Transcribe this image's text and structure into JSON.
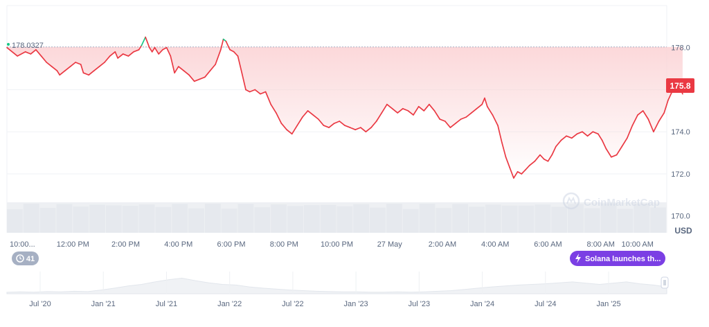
{
  "chart_data": {
    "type": "line",
    "unit_label": "USD",
    "current_price_label": "175.8",
    "reference_price_label": "178.0327",
    "reference_price": 178.0327,
    "ylim": [
      169.2,
      180.0
    ],
    "y_ticks": [
      "178.0",
      "176.0",
      "174.0",
      "172.0",
      "170.0"
    ],
    "y_tick_values": [
      178.0,
      176.0,
      174.0,
      172.0,
      170.0
    ],
    "x_ticks": [
      "10:00...",
      "12:00 PM",
      "2:00 PM",
      "4:00 PM",
      "6:00 PM",
      "8:00 PM",
      "10:00 PM",
      "27 May",
      "2:00 AM",
      "4:00 AM",
      "6:00 AM",
      "8:00 AM",
      "10:00 AM"
    ],
    "x_tick_values": [
      0,
      2,
      4,
      6,
      8,
      10,
      12,
      14,
      16,
      18,
      20,
      22,
      24
    ],
    "x_range": [
      -0.5,
      24.5
    ],
    "series": [
      {
        "values": [
          [
            -0.5,
            178.0
          ],
          [
            -0.1,
            177.6
          ],
          [
            0.2,
            177.8
          ],
          [
            0.4,
            177.7
          ],
          [
            0.6,
            177.9
          ],
          [
            0.8,
            177.6
          ],
          [
            1.0,
            177.3
          ],
          [
            1.2,
            177.1
          ],
          [
            1.4,
            176.9
          ],
          [
            1.5,
            176.7
          ],
          [
            1.7,
            176.9
          ],
          [
            1.9,
            177.1
          ],
          [
            2.1,
            177.3
          ],
          [
            2.3,
            177.2
          ],
          [
            2.4,
            176.8
          ],
          [
            2.6,
            176.7
          ],
          [
            2.8,
            176.9
          ],
          [
            3.0,
            177.1
          ],
          [
            3.2,
            177.3
          ],
          [
            3.4,
            177.6
          ],
          [
            3.6,
            177.8
          ],
          [
            3.7,
            177.5
          ],
          [
            3.9,
            177.7
          ],
          [
            4.1,
            177.6
          ],
          [
            4.3,
            177.8
          ],
          [
            4.5,
            177.9
          ],
          [
            4.6,
            178.1
          ],
          [
            4.75,
            178.5
          ],
          [
            4.9,
            178.0
          ],
          [
            5.0,
            177.8
          ],
          [
            5.1,
            178.0
          ],
          [
            5.25,
            177.7
          ],
          [
            5.4,
            177.9
          ],
          [
            5.55,
            178.0
          ],
          [
            5.7,
            177.6
          ],
          [
            5.85,
            176.8
          ],
          [
            6.0,
            177.1
          ],
          [
            6.2,
            176.9
          ],
          [
            6.4,
            176.7
          ],
          [
            6.6,
            176.4
          ],
          [
            6.8,
            176.5
          ],
          [
            7.0,
            176.6
          ],
          [
            7.2,
            176.9
          ],
          [
            7.4,
            177.2
          ],
          [
            7.6,
            177.9
          ],
          [
            7.7,
            178.4
          ],
          [
            7.8,
            178.3
          ],
          [
            7.95,
            177.9
          ],
          [
            8.1,
            177.8
          ],
          [
            8.25,
            177.6
          ],
          [
            8.4,
            176.8
          ],
          [
            8.55,
            176.0
          ],
          [
            8.7,
            175.9
          ],
          [
            8.9,
            176.0
          ],
          [
            9.1,
            175.8
          ],
          [
            9.3,
            175.9
          ],
          [
            9.5,
            175.3
          ],
          [
            9.7,
            174.9
          ],
          [
            9.9,
            174.4
          ],
          [
            10.1,
            174.1
          ],
          [
            10.3,
            173.9
          ],
          [
            10.5,
            174.3
          ],
          [
            10.7,
            174.7
          ],
          [
            10.9,
            175.0
          ],
          [
            11.1,
            174.8
          ],
          [
            11.3,
            174.6
          ],
          [
            11.5,
            174.3
          ],
          [
            11.7,
            174.2
          ],
          [
            11.9,
            174.4
          ],
          [
            12.1,
            174.5
          ],
          [
            12.3,
            174.3
          ],
          [
            12.5,
            174.2
          ],
          [
            12.7,
            174.1
          ],
          [
            12.9,
            174.2
          ],
          [
            13.1,
            174.0
          ],
          [
            13.3,
            174.2
          ],
          [
            13.5,
            174.5
          ],
          [
            13.7,
            174.9
          ],
          [
            13.9,
            175.3
          ],
          [
            14.1,
            175.1
          ],
          [
            14.3,
            174.9
          ],
          [
            14.5,
            175.1
          ],
          [
            14.7,
            175.0
          ],
          [
            14.9,
            174.8
          ],
          [
            15.1,
            175.2
          ],
          [
            15.3,
            175.0
          ],
          [
            15.5,
            175.3
          ],
          [
            15.7,
            175.0
          ],
          [
            15.9,
            174.6
          ],
          [
            16.1,
            174.5
          ],
          [
            16.3,
            174.2
          ],
          [
            16.5,
            174.4
          ],
          [
            16.7,
            174.6
          ],
          [
            16.9,
            174.7
          ],
          [
            17.1,
            174.9
          ],
          [
            17.3,
            175.1
          ],
          [
            17.5,
            175.3
          ],
          [
            17.6,
            175.6
          ],
          [
            17.7,
            175.2
          ],
          [
            17.9,
            174.8
          ],
          [
            18.1,
            174.3
          ],
          [
            18.25,
            173.5
          ],
          [
            18.4,
            172.8
          ],
          [
            18.55,
            172.3
          ],
          [
            18.7,
            171.8
          ],
          [
            18.85,
            172.1
          ],
          [
            19.0,
            172.0
          ],
          [
            19.15,
            172.2
          ],
          [
            19.3,
            172.4
          ],
          [
            19.5,
            172.6
          ],
          [
            19.7,
            172.9
          ],
          [
            19.85,
            172.7
          ],
          [
            20.0,
            172.6
          ],
          [
            20.15,
            172.9
          ],
          [
            20.3,
            173.3
          ],
          [
            20.5,
            173.6
          ],
          [
            20.7,
            173.8
          ],
          [
            20.9,
            173.7
          ],
          [
            21.1,
            173.9
          ],
          [
            21.3,
            174.0
          ],
          [
            21.5,
            173.8
          ],
          [
            21.7,
            174.0
          ],
          [
            21.9,
            173.9
          ],
          [
            22.05,
            173.6
          ],
          [
            22.2,
            173.2
          ],
          [
            22.4,
            172.8
          ],
          [
            22.6,
            172.9
          ],
          [
            22.8,
            173.3
          ],
          [
            23.0,
            173.7
          ],
          [
            23.2,
            174.3
          ],
          [
            23.4,
            174.8
          ],
          [
            23.6,
            175.0
          ],
          [
            23.8,
            174.6
          ],
          [
            24.0,
            174.0
          ],
          [
            24.2,
            174.5
          ],
          [
            24.4,
            174.9
          ],
          [
            24.55,
            175.5
          ],
          [
            24.7,
            175.9
          ],
          [
            24.85,
            176.2
          ],
          [
            25.0,
            176.1
          ],
          [
            25.1,
            175.8
          ]
        ]
      }
    ],
    "reference_line": true,
    "colors": {
      "line_down": "#ea3943",
      "line_up": "#16c784",
      "fill_top": "#fbd4d6",
      "ref_line": "#a6b0c3",
      "badge": "#ea3943",
      "text": "#58667e",
      "grid": "#eff2f5",
      "event_chip": "#7b3fe4"
    },
    "watermark": "CoinMarketCap",
    "events_count": "41",
    "event_label": "Solana launches th...",
    "navigator_labels": [
      "Jul '20",
      "Jan '21",
      "Jul '21",
      "Jan '22",
      "Jul '22",
      "Jan '23",
      "Jul '23",
      "Jan '24",
      "Jul '24",
      "Jan '25"
    ],
    "navigator_volume": [
      0.05,
      0.06,
      0.05,
      0.07,
      0.06,
      0.08,
      0.07,
      0.12,
      0.18,
      0.25,
      0.3,
      0.38,
      0.45,
      0.5,
      0.42,
      0.35,
      0.3,
      0.28,
      0.22,
      0.18,
      0.15,
      0.12,
      0.1,
      0.08,
      0.07,
      0.06,
      0.06,
      0.05,
      0.05,
      0.06,
      0.05,
      0.06,
      0.08,
      0.1,
      0.14,
      0.18,
      0.22,
      0.25,
      0.28,
      0.3,
      0.32,
      0.35,
      0.38,
      0.34,
      0.3,
      0.34,
      0.38,
      0.32,
      0.28,
      0.22
    ]
  }
}
